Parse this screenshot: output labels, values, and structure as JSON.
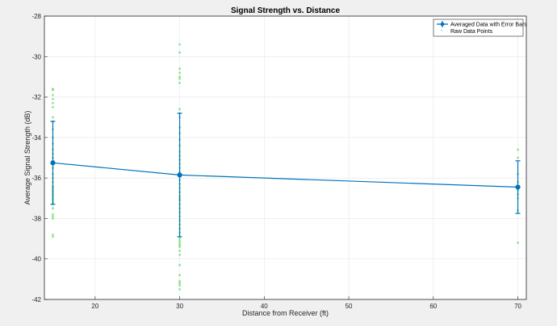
{
  "chart_data": {
    "type": "scatter",
    "title": "Signal Strength vs. Distance",
    "xlabel": "Distance from Receiver (ft)",
    "ylabel": "Average Signal Strength (dB)",
    "xlim": [
      14,
      71
    ],
    "ylim": [
      -42,
      -28
    ],
    "xticks": [
      "20",
      "30",
      "40",
      "50",
      "60",
      "70"
    ],
    "yticks": [
      "-42",
      "-40",
      "-38",
      "-36",
      "-34",
      "-32",
      "-30",
      "-28"
    ],
    "grid": true,
    "legend_position": "top-right",
    "series": [
      {
        "name": "Averaged Data with Error Bars",
        "kind": "line-errorbar",
        "color": "#0072bd",
        "x": [
          15,
          30,
          70
        ],
        "y": [
          -35.25,
          -35.85,
          -36.45
        ],
        "err": [
          2.05,
          3.05,
          1.3
        ]
      },
      {
        "name": "Raw Data Points",
        "kind": "scatter",
        "color": "#5cd65c",
        "x": [
          15,
          15,
          15,
          15,
          15,
          15,
          15,
          15,
          15,
          15,
          15,
          15,
          15,
          15,
          15,
          15,
          15,
          15,
          15,
          15,
          15,
          15,
          15,
          15,
          15,
          15,
          15,
          15,
          15,
          15,
          15,
          15,
          15,
          15,
          15,
          15,
          30,
          30,
          30,
          30,
          30,
          30,
          30,
          30,
          30,
          30,
          30,
          30,
          30,
          30,
          30,
          30,
          30,
          30,
          30,
          30,
          30,
          30,
          30,
          30,
          30,
          30,
          30,
          30,
          30,
          30,
          30,
          30,
          30,
          30,
          30,
          30,
          30,
          30,
          30,
          30,
          30,
          30,
          30,
          30,
          30,
          30,
          30,
          30,
          30,
          30,
          70,
          70,
          70,
          70,
          70,
          70,
          70,
          70,
          70,
          70
        ],
        "y": [
          -31.6,
          -31.65,
          -31.9,
          -32.1,
          -32.3,
          -32.5,
          -33.0,
          -33.2,
          -33.6,
          -34.0,
          -34.3,
          -34.6,
          -34.8,
          -35.0,
          -35.2,
          -35.3,
          -35.5,
          -35.8,
          -36.0,
          -36.2,
          -36.4,
          -36.5,
          -36.6,
          -36.7,
          -36.8,
          -36.9,
          -37.0,
          -37.1,
          -37.2,
          -37.3,
          -37.5,
          -37.8,
          -37.9,
          -38.0,
          -38.8,
          -38.9,
          -29.4,
          -29.8,
          -30.6,
          -30.8,
          -31.0,
          -31.1,
          -31.3,
          -32.6,
          -32.8,
          -33.0,
          -33.5,
          -33.8,
          -34.1,
          -34.4,
          -34.7,
          -34.9,
          -35.1,
          -35.3,
          -35.5,
          -35.7,
          -35.9,
          -36.1,
          -36.3,
          -36.5,
          -36.7,
          -36.9,
          -37.1,
          -37.3,
          -37.5,
          -37.7,
          -37.9,
          -38.1,
          -38.3,
          -38.5,
          -38.7,
          -38.9,
          -39.0,
          -39.1,
          -39.2,
          -39.3,
          -39.4,
          -39.6,
          -39.8,
          -40.3,
          -40.8,
          -41.1,
          -41.2,
          -41.3,
          -41.5,
          -37.0,
          -34.6,
          -35.0,
          -35.8,
          -36.2,
          -36.4,
          -36.6,
          -36.8,
          -37.0,
          -37.6,
          -39.2
        ]
      }
    ]
  }
}
